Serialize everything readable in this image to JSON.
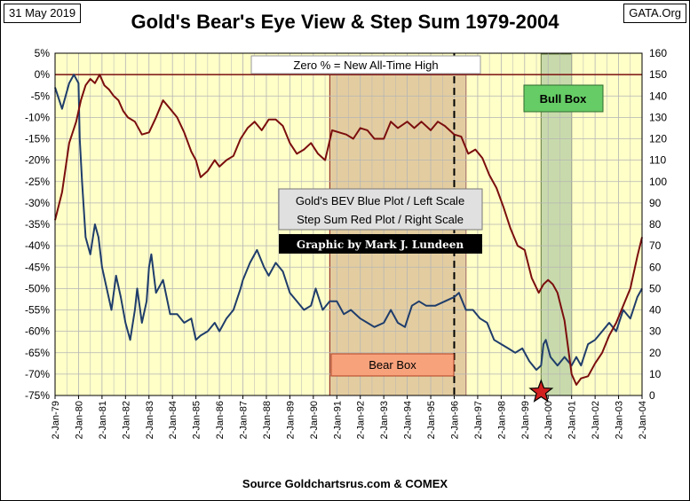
{
  "header": {
    "date": "31 May 2019",
    "site": "GATA.Org",
    "title": "Gold's Bear's Eye View & Step Sum 1979-2004"
  },
  "footer": {
    "source": "Source Goldchartsrus.com & COMEX"
  },
  "colors": {
    "plot_bg": "#FFFFC8",
    "grid": "#B4B4B4",
    "blue_series": "#1F3D6B",
    "red_series": "#7B0E0E",
    "bear_box": "#E3CDA0",
    "bull_box": "#C3D6A8",
    "bull_label_bg": "#66CC66",
    "bear_label_bg": "#F8A27C",
    "star": "#D22020"
  },
  "chart_data": {
    "type": "line",
    "title": "Gold's Bear's Eye View & Step Sum 1979-2004",
    "annotations": {
      "zero_note": "Zero % = New All-Time High",
      "legend_line1": "Gold's BEV Blue Plot / Left Scale",
      "legend_line2": "Step Sum Red Plot / Right Scale",
      "credit": "Graphic by Mark J. Lundeen",
      "bull_box": "Bull Box",
      "bear_box": "Bear Box"
    },
    "x_ticks": [
      "2-Jan-79",
      "2-Jan-80",
      "2-Jan-81",
      "2-Jan-82",
      "2-Jan-83",
      "2-Jan-84",
      "2-Jan-85",
      "2-Jan-86",
      "2-Jan-87",
      "2-Jan-88",
      "2-Jan-89",
      "2-Jan-90",
      "2-Jan-91",
      "2-Jan-92",
      "2-Jan-93",
      "2-Jan-94",
      "2-Jan-95",
      "2-Jan-96",
      "2-Jan-97",
      "2-Jan-98",
      "2-Jan-99",
      "2-Jan-00",
      "2-Jan-01",
      "2-Jan-02",
      "2-Jan-03",
      "2-Jan-04"
    ],
    "xlim": [
      1979.0,
      2004.0
    ],
    "left_axis": {
      "ylim": [
        -75,
        5
      ],
      "ticks": [
        "5%",
        "0%",
        "-5%",
        "-10%",
        "-15%",
        "-20%",
        "-25%",
        "-30%",
        "-35%",
        "-40%",
        "-45%",
        "-50%",
        "-55%",
        "-60%",
        "-65%",
        "-70%",
        "-75%"
      ],
      "tick_values": [
        5,
        0,
        -5,
        -10,
        -15,
        -20,
        -25,
        -30,
        -35,
        -40,
        -45,
        -50,
        -55,
        -60,
        -65,
        -70,
        -75
      ]
    },
    "right_axis": {
      "ylim": [
        0,
        160
      ],
      "ticks": [
        "160",
        "150",
        "140",
        "130",
        "120",
        "110",
        "100",
        "90",
        "80",
        "70",
        "60",
        "50",
        "40",
        "30",
        "20",
        "10",
        "0"
      ],
      "tick_values": [
        160,
        150,
        140,
        130,
        120,
        110,
        100,
        90,
        80,
        70,
        60,
        50,
        40,
        30,
        20,
        10,
        0
      ]
    },
    "bear_box_range": [
      1990.7,
      1996.5
    ],
    "bull_box_range": [
      1999.7,
      2001.0
    ],
    "dashed_line_x": 1996.0,
    "star_x": 1999.7,
    "grid": true,
    "series": [
      {
        "name": "Gold's BEV Blue Plot / Left Scale",
        "axis": "left",
        "x": [
          1979.0,
          1979.3,
          1979.6,
          1979.8,
          1980.0,
          1980.05,
          1980.15,
          1980.3,
          1980.5,
          1980.7,
          1980.85,
          1981.0,
          1981.2,
          1981.4,
          1981.6,
          1981.8,
          1982.0,
          1982.2,
          1982.4,
          1982.5,
          1982.7,
          1982.9,
          1983.0,
          1983.1,
          1983.3,
          1983.6,
          1983.9,
          1984.2,
          1984.5,
          1984.8,
          1985.0,
          1985.2,
          1985.5,
          1985.8,
          1986.0,
          1986.3,
          1986.6,
          1986.9,
          1987.0,
          1987.3,
          1987.6,
          1987.9,
          1988.1,
          1988.4,
          1988.7,
          1989.0,
          1989.3,
          1989.6,
          1989.9,
          1990.1,
          1990.4,
          1990.7,
          1991.0,
          1991.3,
          1991.6,
          1992.0,
          1992.3,
          1992.6,
          1993.0,
          1993.3,
          1993.6,
          1993.9,
          1994.2,
          1994.5,
          1994.8,
          1995.2,
          1995.6,
          1996.0,
          1996.2,
          1996.5,
          1996.8,
          1997.1,
          1997.4,
          1997.7,
          1998.0,
          1998.3,
          1998.6,
          1998.9,
          1999.2,
          1999.5,
          1999.7,
          1999.8,
          1999.9,
          2000.1,
          2000.4,
          2000.7,
          2001.0,
          2001.2,
          2001.4,
          2001.7,
          2002.0,
          2002.3,
          2002.6,
          2002.9,
          2003.2,
          2003.5,
          2003.8,
          2004.0
        ],
        "y": [
          -3,
          -8,
          -2,
          0,
          -2,
          -15,
          -25,
          -38,
          -42,
          -35,
          -38,
          -45,
          -50,
          -55,
          -47,
          -52,
          -58,
          -62,
          -55,
          -50,
          -58,
          -53,
          -45,
          -42,
          -51,
          -48,
          -56,
          -56,
          -58,
          -57,
          -62,
          -61,
          -60,
          -58,
          -60,
          -57,
          -55,
          -50,
          -48,
          -44,
          -41,
          -45,
          -47,
          -44,
          -46,
          -51,
          -53,
          -55,
          -54,
          -50,
          -55,
          -53,
          -53,
          -56,
          -55,
          -57,
          -58,
          -59,
          -58,
          -55,
          -58,
          -59,
          -54,
          -53,
          -54,
          -54,
          -53,
          -52,
          -51,
          -55,
          -55,
          -57,
          -58,
          -62,
          -63,
          -64,
          -65,
          -64,
          -67,
          -69,
          -68,
          -63,
          -62,
          -66,
          -68,
          -66,
          -68,
          -66,
          -68,
          -63,
          -62,
          -60,
          -58,
          -60,
          -55,
          -57,
          -52,
          -50
        ]
      },
      {
        "name": "Step Sum Red Plot / Right Scale",
        "axis": "right",
        "x": [
          1979.0,
          1979.3,
          1979.6,
          1979.9,
          1980.1,
          1980.3,
          1980.5,
          1980.7,
          1980.9,
          1981.1,
          1981.3,
          1981.5,
          1981.7,
          1981.9,
          1982.1,
          1982.4,
          1982.7,
          1983.0,
          1983.3,
          1983.6,
          1983.9,
          1984.2,
          1984.5,
          1984.8,
          1985.0,
          1985.2,
          1985.5,
          1985.8,
          1986.0,
          1986.3,
          1986.6,
          1986.9,
          1987.2,
          1987.5,
          1987.8,
          1988.1,
          1988.4,
          1988.7,
          1989.0,
          1989.3,
          1989.6,
          1989.9,
          1990.2,
          1990.5,
          1990.8,
          1991.1,
          1991.4,
          1991.7,
          1992.0,
          1992.3,
          1992.6,
          1993.0,
          1993.3,
          1993.6,
          1994.0,
          1994.3,
          1994.6,
          1995.0,
          1995.3,
          1995.6,
          1996.0,
          1996.3,
          1996.6,
          1996.9,
          1997.2,
          1997.5,
          1997.8,
          1998.1,
          1998.4,
          1998.7,
          1999.0,
          1999.3,
          1999.6,
          1999.8,
          2000.0,
          2000.2,
          2000.4,
          2000.7,
          2001.0,
          2001.2,
          2001.4,
          2001.7,
          2002.0,
          2002.3,
          2002.6,
          2002.9,
          2003.2,
          2003.5,
          2003.8,
          2004.0
        ],
        "y": [
          82,
          95,
          118,
          128,
          138,
          145,
          148,
          146,
          150,
          145,
          143,
          140,
          138,
          133,
          130,
          128,
          122,
          123,
          130,
          138,
          134,
          130,
          123,
          114,
          110,
          102,
          105,
          110,
          107,
          110,
          112,
          120,
          125,
          128,
          124,
          129,
          129,
          126,
          118,
          113,
          115,
          118,
          113,
          110,
          124,
          123,
          122,
          120,
          125,
          124,
          120,
          120,
          128,
          125,
          128,
          125,
          128,
          124,
          128,
          126,
          122,
          121,
          113,
          115,
          111,
          103,
          97,
          88,
          78,
          70,
          68,
          55,
          48,
          52,
          54,
          52,
          48,
          35,
          10,
          5,
          8,
          9,
          15,
          20,
          28,
          34,
          42,
          50,
          65,
          74
        ]
      }
    ]
  }
}
